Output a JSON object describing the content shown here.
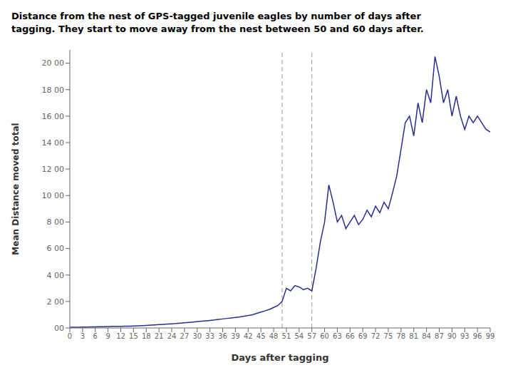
{
  "chart_data": {
    "type": "line",
    "title": "Distance from the nest of GPS-tagged juvenile eagles by number of days after",
    "subtitle": "tagging. They start to move away from the nest between 50 and 60 days after.",
    "xlabel": "Days after tagging",
    "ylabel": "Mean Distance moved total",
    "color": "#2B2D8E",
    "grid": false,
    "xlim": [
      0,
      99
    ],
    "ylim": [
      0,
      21000
    ],
    "xticks": [
      0,
      3,
      6,
      9,
      12,
      15,
      18,
      21,
      24,
      27,
      30,
      33,
      36,
      39,
      42,
      45,
      48,
      51,
      54,
      57,
      60,
      63,
      66,
      69,
      72,
      75,
      78,
      81,
      84,
      87,
      90,
      93,
      96,
      99
    ],
    "yticks": [
      {
        "value": 0,
        "label": "00"
      },
      {
        "value": 2000,
        "label": "2 00"
      },
      {
        "value": 4000,
        "label": "4 00"
      },
      {
        "value": 6000,
        "label": "6 00"
      },
      {
        "value": 8000,
        "label": "8 00"
      },
      {
        "value": 10000,
        "label": "10 00"
      },
      {
        "value": 12000,
        "label": "12 00"
      },
      {
        "value": 14000,
        "label": "14 00"
      },
      {
        "value": 16000,
        "label": "16 00"
      },
      {
        "value": 18000,
        "label": "18 00"
      },
      {
        "value": 20000,
        "label": "20 00"
      }
    ],
    "vlines": [
      {
        "x": 50,
        "color": "#999999",
        "line_style": "dashed"
      },
      {
        "x": 57,
        "color": "#999999",
        "line_style": "dashed"
      }
    ],
    "x": [
      0,
      1,
      2,
      3,
      4,
      5,
      6,
      7,
      8,
      9,
      10,
      11,
      12,
      13,
      14,
      15,
      16,
      17,
      18,
      19,
      20,
      21,
      22,
      23,
      24,
      25,
      26,
      27,
      28,
      29,
      30,
      31,
      32,
      33,
      34,
      35,
      36,
      37,
      38,
      39,
      40,
      41,
      42,
      43,
      44,
      45,
      46,
      47,
      48,
      49,
      50,
      51,
      52,
      53,
      54,
      55,
      56,
      57,
      58,
      59,
      60,
      61,
      62,
      63,
      64,
      65,
      66,
      67,
      68,
      69,
      70,
      71,
      72,
      73,
      74,
      75,
      76,
      77,
      78,
      79,
      80,
      81,
      82,
      83,
      84,
      85,
      86,
      87,
      88,
      89,
      90,
      91,
      92,
      93,
      94,
      95,
      96,
      97,
      98,
      99
    ],
    "values": [
      50,
      55,
      60,
      65,
      70,
      75,
      80,
      90,
      100,
      110,
      115,
      120,
      125,
      130,
      140,
      150,
      160,
      175,
      190,
      210,
      230,
      250,
      270,
      290,
      310,
      330,
      360,
      390,
      420,
      450,
      480,
      510,
      540,
      570,
      600,
      640,
      680,
      720,
      760,
      800,
      840,
      890,
      940,
      1000,
      1100,
      1200,
      1300,
      1400,
      1550,
      1700,
      2000,
      3000,
      2800,
      3200,
      3100,
      2900,
      3000,
      2800,
      4500,
      6500,
      8000,
      10800,
      9500,
      8000,
      8500,
      7500,
      8000,
      8500,
      7800,
      8200,
      8900,
      8400,
      9200,
      8700,
      9500,
      9000,
      10200,
      11500,
      13500,
      15500,
      16000,
      14500,
      17000,
      15500,
      18000,
      17000,
      20500,
      19000,
      17000,
      18000,
      16000,
      17500,
      16000,
      15000,
      16000,
      15500,
      16000,
      15500,
      15000,
      14800
    ]
  }
}
